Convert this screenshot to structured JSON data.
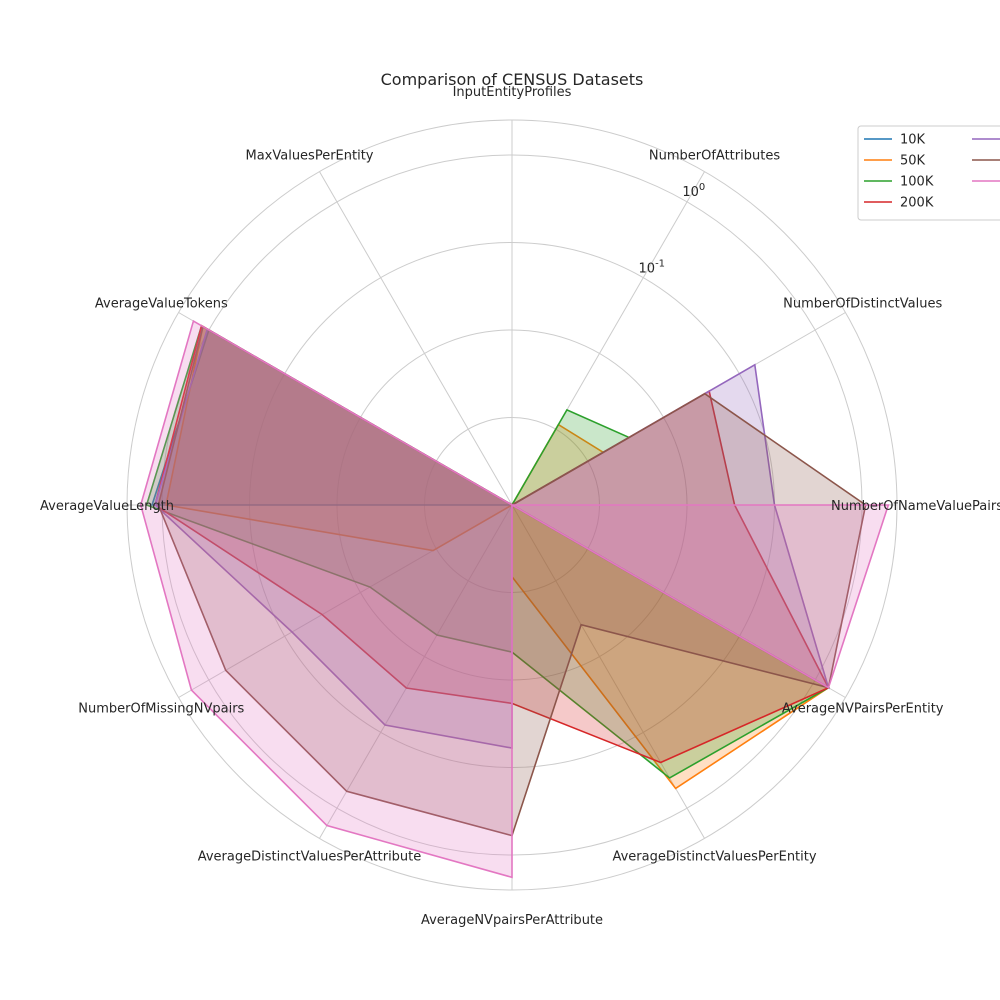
{
  "chart_data": {
    "type": "radar",
    "title": "Comparison of CENSUS Datasets",
    "axes": [
      "InputEntityProfiles",
      "NumberOfAttributes",
      "NumberOfDistinctValues",
      "NumberOfNameValuePairs",
      "AverageNVPairsPerEntity",
      "AverageDistinctValuesPerEntity",
      "AverageNVpairsPerAttribute",
      "AverageDistinctValuesPerAttribute",
      "NumberOfMissingNVpairs",
      "AverageValueLength",
      "AverageValueTokens",
      "MaxValuesPerEntity"
    ],
    "radial_scale": "log",
    "radial_ticks": [
      {
        "value": 0.1,
        "label": "10^-1"
      },
      {
        "value": 1,
        "label": "10^0"
      }
    ],
    "grid": true,
    "legend_position": "top-right",
    "series": [
      {
        "name": "10K",
        "color": "#1f77b4",
        "values": [
          0.0001,
          0.0001,
          0.0001,
          0.0001,
          1.5,
          0.0001,
          0.0001,
          0.0001,
          0.0001,
          1.3,
          1.0,
          0.0001
        ]
      },
      {
        "name": "50K",
        "color": "#ff7f0e",
        "values": [
          0.0001,
          0.00115,
          0.0016,
          0.0001,
          1.5,
          0.55,
          0.00066,
          0.0001,
          0.0011,
          0.9,
          1.2,
          0.0001
        ]
      },
      {
        "name": "100K",
        "color": "#2ca02c",
        "values": [
          0.0001,
          0.0018,
          0.0035,
          0.0001,
          1.5,
          0.4,
          0.0048,
          0.0052,
          0.0075,
          1.5,
          1.25,
          0.0001
        ]
      },
      {
        "name": "200K",
        "color": "#d62728",
        "values": [
          0.0001,
          0.0001,
          0.04,
          0.035,
          1.5,
          0.25,
          0.0185,
          0.026,
          0.032,
          1.2,
          1.25,
          0.0001
        ]
      },
      {
        "name": "",
        "color": "#9467bd",
        "values": [
          0.0001,
          0.0001,
          0.16,
          0.1,
          1.5,
          0.0001,
          0.06,
          0.08,
          0.08,
          1.2,
          1.05,
          0.0001
        ]
      },
      {
        "name": "",
        "color": "#8c564b",
        "values": [
          0.0001,
          0.0001,
          0.035,
          1.1,
          1.5,
          0.0038,
          0.6,
          0.6,
          0.6,
          1.1,
          1.2,
          0.0001
        ]
      },
      {
        "name": "",
        "color": "#e377c2",
        "values": [
          0.0001,
          0.0001,
          0.0001,
          2.0,
          1.5,
          0.0001,
          1.8,
          1.7,
          1.7,
          1.75,
          1.6,
          0.0001
        ]
      }
    ]
  }
}
